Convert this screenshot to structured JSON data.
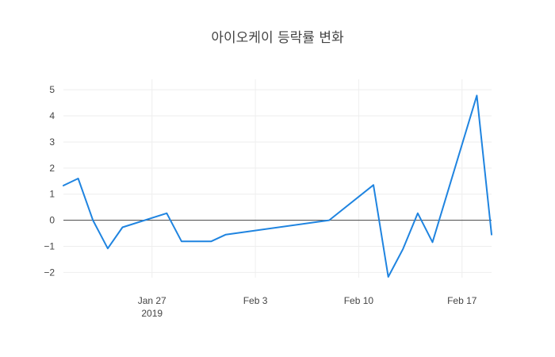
{
  "chart_data": {
    "type": "line",
    "title": "아이오케이 등락률 변화",
    "xlabel": "",
    "ylabel": "",
    "x_range": [
      "2019-01-21",
      "2019-02-19"
    ],
    "ylim": [
      -2.2,
      5.4
    ],
    "grid": true,
    "zero_line": true,
    "legend": "none",
    "line_color": "#1f84e0",
    "x_ticks": [
      {
        "date": "2019-01-27",
        "label": "Jan 27",
        "sublabel": "2019"
      },
      {
        "date": "2019-02-03",
        "label": "Feb 3",
        "sublabel": ""
      },
      {
        "date": "2019-02-10",
        "label": "Feb 10",
        "sublabel": ""
      },
      {
        "date": "2019-02-17",
        "label": "Feb 17",
        "sublabel": ""
      }
    ],
    "y_ticks": [
      {
        "value": 5,
        "label": "5"
      },
      {
        "value": 4,
        "label": "4"
      },
      {
        "value": 3,
        "label": "3"
      },
      {
        "value": 2,
        "label": "2"
      },
      {
        "value": 1,
        "label": "1"
      },
      {
        "value": 0,
        "label": "0"
      },
      {
        "value": -1,
        "label": "−1"
      },
      {
        "value": -2,
        "label": "−2"
      }
    ],
    "series": [
      {
        "x": [
          "2019-01-21",
          "2019-01-22",
          "2019-01-23",
          "2019-01-24",
          "2019-01-25",
          "2019-01-28",
          "2019-01-29",
          "2019-01-30",
          "2019-01-31",
          "2019-02-01",
          "2019-02-08",
          "2019-02-11",
          "2019-02-12",
          "2019-02-13",
          "2019-02-14",
          "2019-02-15",
          "2019-02-18",
          "2019-02-19"
        ],
        "y": [
          1.33,
          1.6,
          0.0,
          -1.08,
          -0.27,
          0.27,
          -0.81,
          -0.81,
          -0.81,
          -0.55,
          0.0,
          1.35,
          -2.17,
          -1.1,
          0.27,
          -0.84,
          4.78,
          -0.55
        ]
      }
    ]
  }
}
